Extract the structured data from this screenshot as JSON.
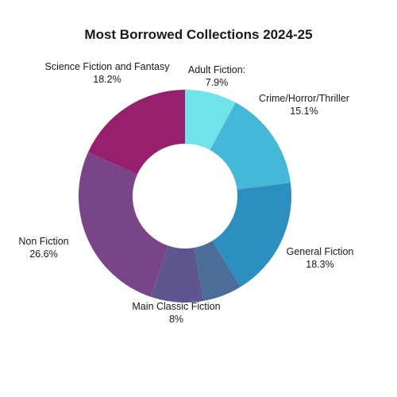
{
  "chart_data": {
    "type": "pie",
    "donut": true,
    "title": "Most Borrowed Collections 2024-25",
    "slices": [
      {
        "name": "Adult Fiction:",
        "value": 7.9,
        "label": "7.9%",
        "color": "#6ee3ea"
      },
      {
        "name": "Crime/Horror/Thriller",
        "value": 15.1,
        "label": "15.1%",
        "color": "#44b8d6"
      },
      {
        "name": "General Fiction",
        "value": 18.3,
        "label": "18.3%",
        "color": "#2c8fbd"
      },
      {
        "name": "",
        "value": 5.9,
        "label": "",
        "color": "#4a6d9a"
      },
      {
        "name": "Main Classic Fiction",
        "value": 8.0,
        "label": "8%",
        "color": "#5e5690"
      },
      {
        "name": "Non Fiction",
        "value": 26.6,
        "label": "26.6%",
        "color": "#7a4488"
      },
      {
        "name": "Science Fiction and Fantasy",
        "value": 18.2,
        "label": "18.2%",
        "color": "#961f6e"
      }
    ],
    "legend": "none"
  }
}
